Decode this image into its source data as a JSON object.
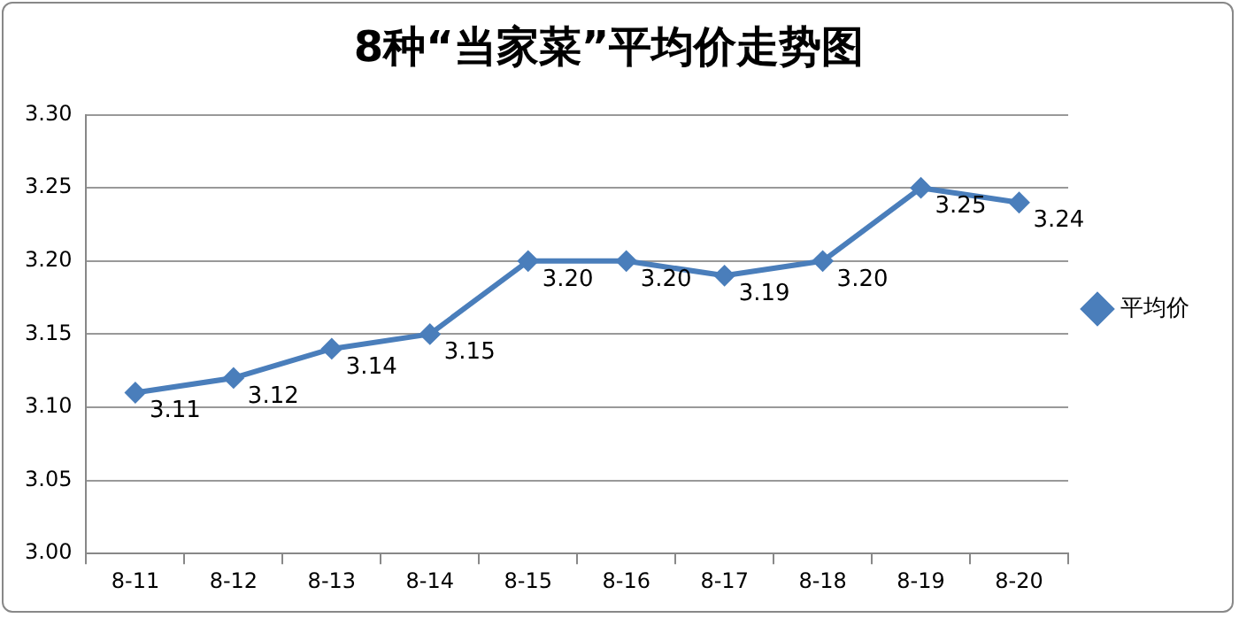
{
  "chart_data": {
    "type": "line",
    "title": "8种“当家菜”平均价走势图",
    "categories": [
      "8-11",
      "8-12",
      "8-13",
      "8-14",
      "8-15",
      "8-16",
      "8-17",
      "8-18",
      "8-19",
      "8-20"
    ],
    "series": [
      {
        "name": "平均价",
        "color": "#4a7ebb",
        "values": [
          3.11,
          3.12,
          3.14,
          3.15,
          3.2,
          3.2,
          3.19,
          3.2,
          3.25,
          3.24
        ],
        "value_labels": [
          "3.11",
          "3.12",
          "3.14",
          "3.15",
          "3.20",
          "3.20",
          "3.19",
          "3.20",
          "3.25",
          "3.24"
        ]
      }
    ],
    "ylim": [
      3.0,
      3.3
    ],
    "yticks": [
      "3.00",
      "3.05",
      "3.10",
      "3.15",
      "3.20",
      "3.25",
      "3.30"
    ],
    "grid": "y",
    "legend": "right",
    "marker": "diamond",
    "line_style": "solid"
  }
}
